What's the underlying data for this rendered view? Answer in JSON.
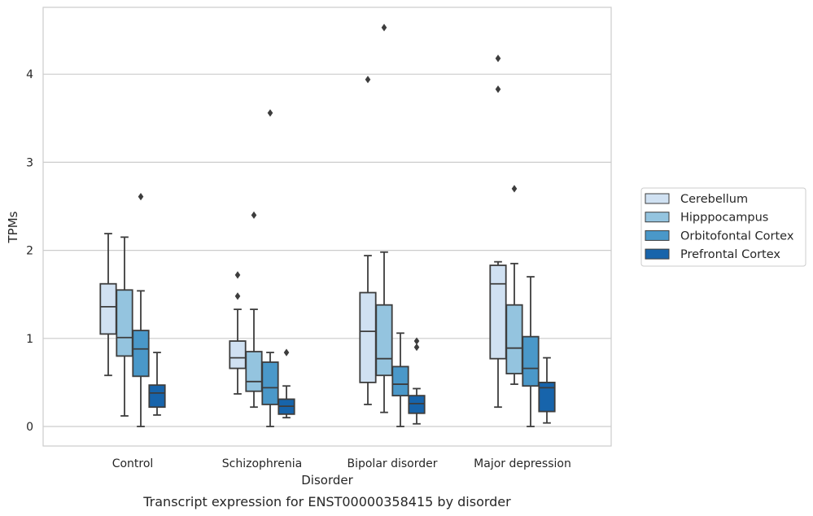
{
  "chart_data": {
    "type": "box",
    "xlabel": "Disorder",
    "ylabel": "TPMs",
    "caption": "Transcript expression for ENST00000358415 by disorder",
    "categories": [
      "Control",
      "Schizophrenia",
      "Bipolar disorder",
      "Major depression"
    ],
    "yticks": [
      0,
      1,
      2,
      3,
      4
    ],
    "ylim": [
      -0.22,
      4.75
    ],
    "grid": "horizontal",
    "legend_position": "right",
    "series": [
      {
        "name": "Cerebellum",
        "color": "#d0e1f2",
        "boxes": [
          {
            "whisker_low": 0.58,
            "q1": 1.05,
            "median": 1.36,
            "q3": 1.62,
            "whisker_high": 2.19,
            "outliers": []
          },
          {
            "whisker_low": 0.37,
            "q1": 0.66,
            "median": 0.78,
            "q3": 0.97,
            "whisker_high": 1.33,
            "outliers": [
              1.72,
              1.48
            ]
          },
          {
            "whisker_low": 0.25,
            "q1": 0.5,
            "median": 1.08,
            "q3": 1.52,
            "whisker_high": 1.94,
            "outliers": [
              3.94
            ]
          },
          {
            "whisker_low": 0.22,
            "q1": 0.77,
            "median": 1.62,
            "q3": 1.83,
            "whisker_high": 1.87,
            "outliers": [
              4.18,
              3.83
            ]
          }
        ]
      },
      {
        "name": "Hipppocampus",
        "color": "#94c4df",
        "boxes": [
          {
            "whisker_low": 0.12,
            "q1": 0.8,
            "median": 1.01,
            "q3": 1.55,
            "whisker_high": 2.15,
            "outliers": []
          },
          {
            "whisker_low": 0.22,
            "q1": 0.4,
            "median": 0.51,
            "q3": 0.85,
            "whisker_high": 1.33,
            "outliers": [
              2.4
            ]
          },
          {
            "whisker_low": 0.16,
            "q1": 0.58,
            "median": 0.77,
            "q3": 1.38,
            "whisker_high": 1.98,
            "outliers": [
              4.53
            ]
          },
          {
            "whisker_low": 0.48,
            "q1": 0.6,
            "median": 0.89,
            "q3": 1.38,
            "whisker_high": 1.85,
            "outliers": [
              2.7
            ]
          }
        ]
      },
      {
        "name": "Orbitofontal Cortex",
        "color": "#4a98c9",
        "boxes": [
          {
            "whisker_low": 0.0,
            "q1": 0.57,
            "median": 0.88,
            "q3": 1.09,
            "whisker_high": 1.54,
            "outliers": [
              2.61
            ]
          },
          {
            "whisker_low": 0.0,
            "q1": 0.25,
            "median": 0.44,
            "q3": 0.73,
            "whisker_high": 0.84,
            "outliers": [
              3.56
            ]
          },
          {
            "whisker_low": 0.0,
            "q1": 0.35,
            "median": 0.48,
            "q3": 0.68,
            "whisker_high": 1.06,
            "outliers": []
          },
          {
            "whisker_low": 0.0,
            "q1": 0.46,
            "median": 0.66,
            "q3": 1.02,
            "whisker_high": 1.7,
            "outliers": []
          }
        ]
      },
      {
        "name": "Prefrontal Cortex",
        "color": "#1764ab",
        "boxes": [
          {
            "whisker_low": 0.13,
            "q1": 0.22,
            "median": 0.38,
            "q3": 0.47,
            "whisker_high": 0.84,
            "outliers": []
          },
          {
            "whisker_low": 0.1,
            "q1": 0.14,
            "median": 0.23,
            "q3": 0.31,
            "whisker_high": 0.46,
            "outliers": [
              0.84
            ]
          },
          {
            "whisker_low": 0.03,
            "q1": 0.15,
            "median": 0.26,
            "q3": 0.35,
            "whisker_high": 0.43,
            "outliers": [
              0.97,
              0.9
            ]
          },
          {
            "whisker_low": 0.04,
            "q1": 0.17,
            "median": 0.44,
            "q3": 0.5,
            "whisker_high": 0.78,
            "outliers": []
          }
        ]
      }
    ]
  }
}
